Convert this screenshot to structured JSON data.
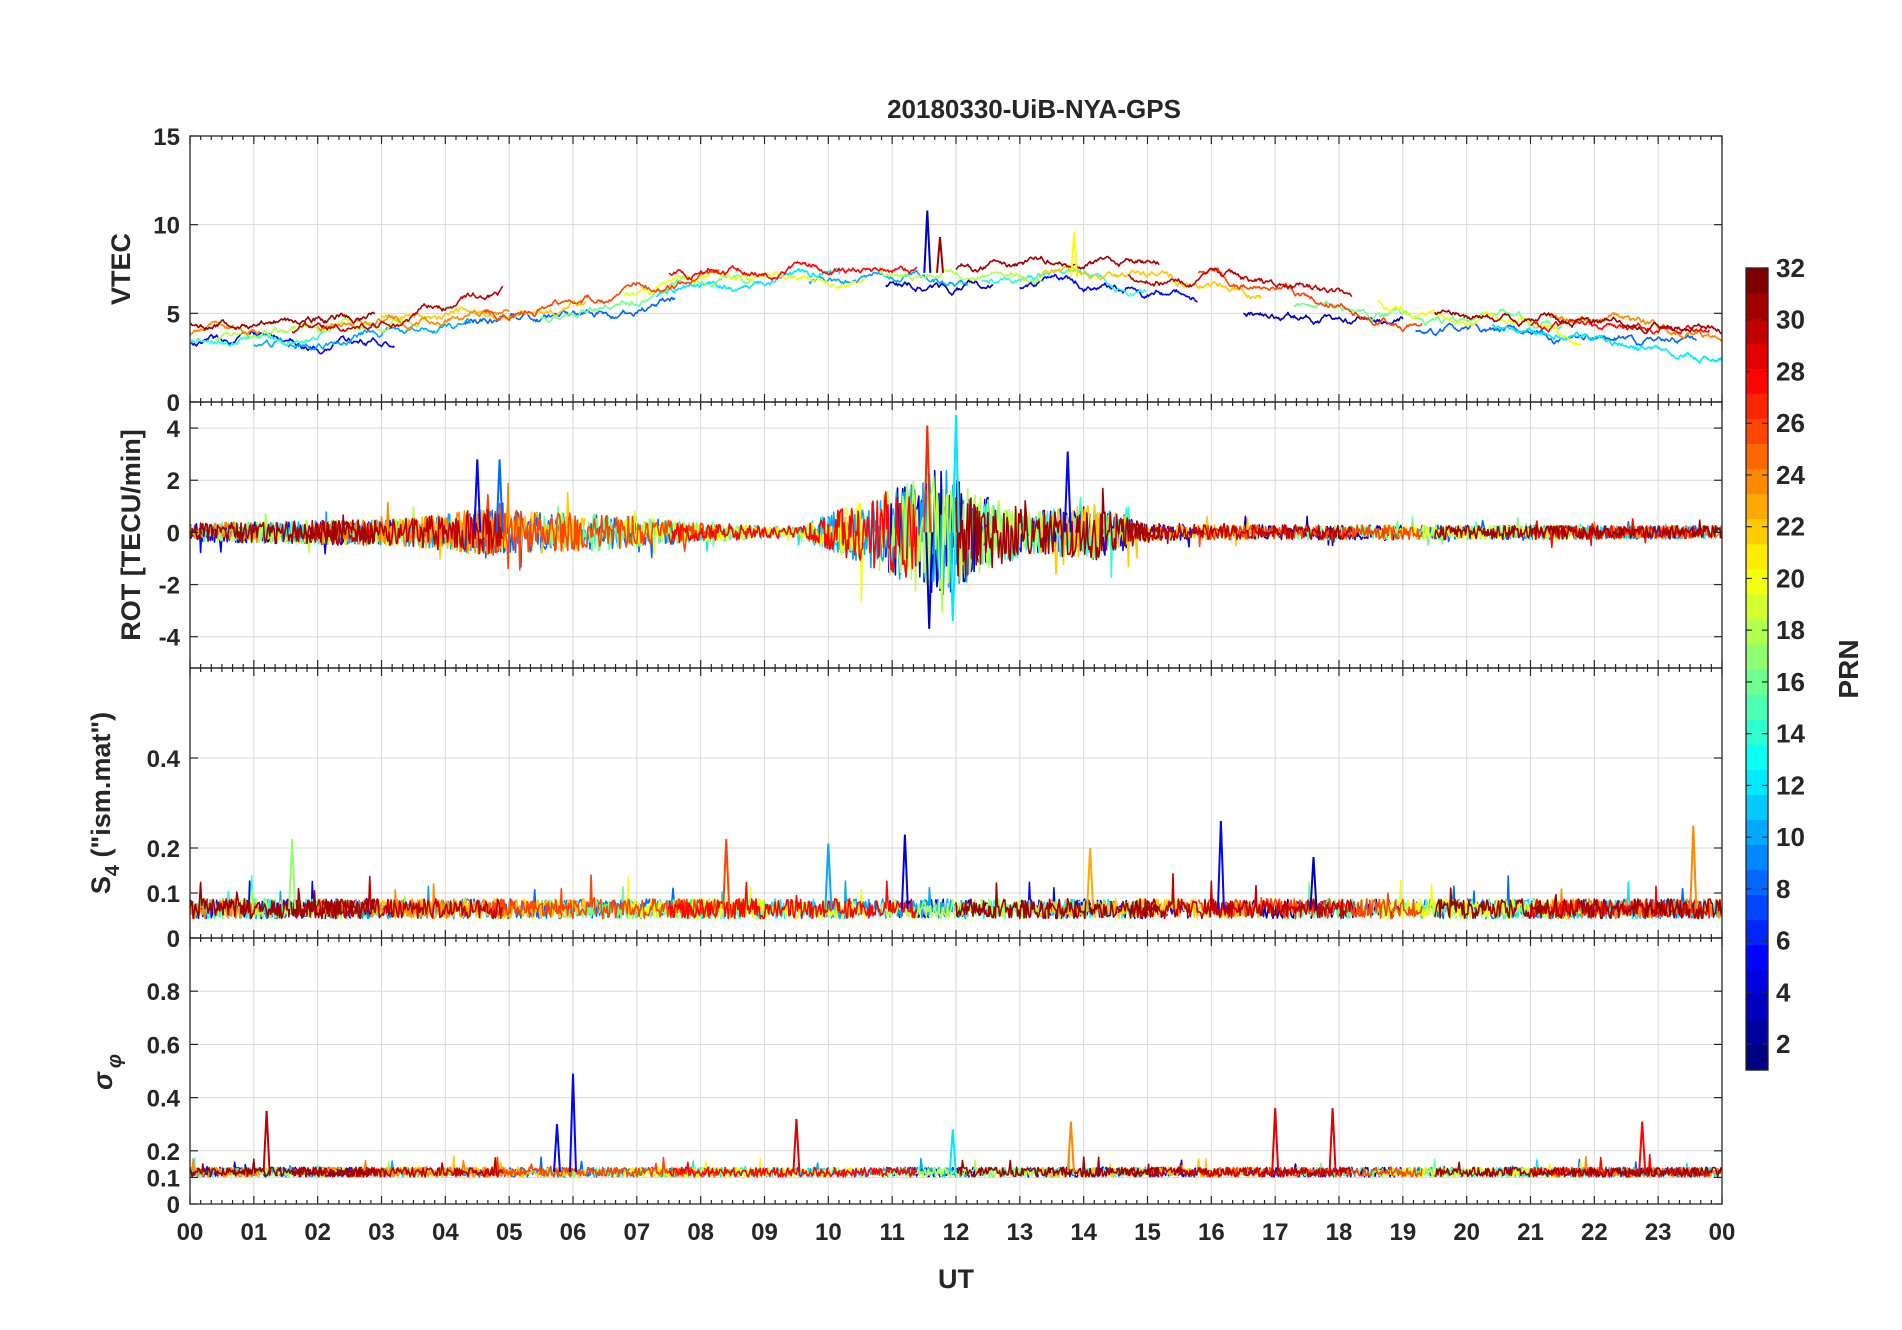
{
  "chart_data": {
    "type": "line",
    "title": "20180330-UiB-NYA-GPS",
    "xlabel": "UT",
    "x_tick_labels": [
      "00",
      "01",
      "02",
      "03",
      "04",
      "05",
      "06",
      "07",
      "08",
      "09",
      "10",
      "11",
      "12",
      "13",
      "14",
      "15",
      "16",
      "17",
      "18",
      "19",
      "20",
      "21",
      "22",
      "23",
      "00"
    ],
    "xlim": [
      0,
      24
    ],
    "panels": [
      {
        "id": "vtec",
        "ylabel": "VTEC",
        "ylim": [
          0,
          15
        ],
        "yticks": [
          0,
          5,
          10,
          15
        ],
        "ytick_labels": [
          "0",
          "5",
          "10",
          "15"
        ],
        "baseline": [
          [
            0,
            3.6
          ],
          [
            2,
            4.0
          ],
          [
            4,
            4.6
          ],
          [
            6,
            5.4
          ],
          [
            8,
            6.8
          ],
          [
            10,
            7.2
          ],
          [
            12,
            7.3
          ],
          [
            14,
            7.0
          ],
          [
            16,
            6.4
          ],
          [
            18,
            5.3
          ],
          [
            20,
            4.4
          ],
          [
            22,
            3.9
          ],
          [
            24,
            3.4
          ]
        ],
        "spread": 1.6,
        "noise": 0.25,
        "spikes": [
          {
            "t": 11.55,
            "v": 10.8,
            "prn": 3
          },
          {
            "t": 11.75,
            "v": 9.3,
            "prn": 31
          },
          {
            "t": 13.85,
            "v": 9.6,
            "prn": 20
          }
        ]
      },
      {
        "id": "rot",
        "ylabel": "ROT [TECU/min]",
        "ylim": [
          -5.2,
          5
        ],
        "yticks": [
          -4,
          -2,
          0,
          2,
          4
        ],
        "ytick_labels": [
          "-4",
          "-2",
          "0",
          "2",
          "4"
        ],
        "activity": [
          [
            0,
            0.35
          ],
          [
            3.5,
            0.55
          ],
          [
            4.5,
            0.9
          ],
          [
            6.5,
            0.7
          ],
          [
            8,
            0.35
          ],
          [
            9.5,
            0.2
          ],
          [
            10.7,
            1.4
          ],
          [
            11.8,
            2.5
          ],
          [
            12.5,
            1.4
          ],
          [
            13.2,
            0.8
          ],
          [
            14.2,
            1.1
          ],
          [
            15,
            0.3
          ],
          [
            24,
            0.25
          ]
        ],
        "spikes": [
          {
            "t": 11.55,
            "v": 4.1,
            "prn": 27
          },
          {
            "t": 11.58,
            "v": -3.7,
            "prn": 3
          },
          {
            "t": 12.0,
            "v": 4.5,
            "prn": 12
          },
          {
            "t": 11.95,
            "v": -3.4,
            "prn": 12
          },
          {
            "t": 13.75,
            "v": 3.1,
            "prn": 5
          },
          {
            "t": 4.5,
            "v": 2.8,
            "prn": 5
          },
          {
            "t": 4.85,
            "v": 2.8,
            "prn": 8
          }
        ]
      },
      {
        "id": "s4",
        "ylabel": "S4 (\"ism.mat\")",
        "ylabel_main": "S",
        "ylabel_sub": "4",
        "ylabel_rest": " (\"ism.mat\")",
        "ylim": [
          0,
          0.6
        ],
        "yticks": [
          0,
          0.1,
          0.2,
          0.4
        ],
        "ytick_labels": [
          "0",
          "0.1",
          "0.2",
          "0.4"
        ],
        "base_value": 0.065,
        "noise": 0.022,
        "spikes": [
          {
            "t": 1.6,
            "v": 0.22,
            "prn": 17
          },
          {
            "t": 8.4,
            "v": 0.22,
            "prn": 26
          },
          {
            "t": 10.0,
            "v": 0.21,
            "prn": 10
          },
          {
            "t": 11.2,
            "v": 0.23,
            "prn": 4
          },
          {
            "t": 14.1,
            "v": 0.2,
            "prn": 23
          },
          {
            "t": 16.15,
            "v": 0.26,
            "prn": 5
          },
          {
            "t": 17.6,
            "v": 0.18,
            "prn": 3
          },
          {
            "t": 23.55,
            "v": 0.25,
            "prn": 24
          }
        ]
      },
      {
        "id": "sigma_phi",
        "ylabel": "σφ",
        "ylabel_main": "σ",
        "ylabel_sub": "φ",
        "ylim": [
          0,
          1
        ],
        "yticks": [
          0,
          0.1,
          0.2,
          0.4,
          0.6,
          0.8
        ],
        "ytick_labels": [
          "0",
          "0.1",
          "0.2",
          "0.4",
          "0.6",
          "0.8"
        ],
        "base_value": 0.12,
        "noise": 0.018,
        "spikes": [
          {
            "t": 1.2,
            "v": 0.35,
            "prn": 30
          },
          {
            "t": 5.75,
            "v": 0.3,
            "prn": 5
          },
          {
            "t": 6.0,
            "v": 0.49,
            "prn": 5
          },
          {
            "t": 9.5,
            "v": 0.32,
            "prn": 29
          },
          {
            "t": 11.95,
            "v": 0.28,
            "prn": 12
          },
          {
            "t": 13.8,
            "v": 0.31,
            "prn": 24
          },
          {
            "t": 17.0,
            "v": 0.36,
            "prn": 29
          },
          {
            "t": 17.9,
            "v": 0.36,
            "prn": 29
          },
          {
            "t": 22.75,
            "v": 0.31,
            "prn": 28
          }
        ]
      }
    ],
    "colorbar": {
      "label": "PRN",
      "min": 1,
      "max": 32,
      "ticks": [
        2,
        4,
        6,
        8,
        10,
        12,
        14,
        16,
        18,
        20,
        22,
        24,
        26,
        28,
        30,
        32
      ],
      "tick_labels": [
        "2",
        "4",
        "6",
        "8",
        "10",
        "12",
        "14",
        "16",
        "18",
        "20",
        "22",
        "24",
        "26",
        "28",
        "30",
        "32"
      ],
      "colormap": "jet"
    },
    "satellites": [
      {
        "prn": 3,
        "segments": [
          [
            10.9,
            12.6
          ],
          [
            16.5,
            19.0
          ]
        ]
      },
      {
        "prn": 5,
        "segments": [
          [
            0.0,
            3.2
          ],
          [
            13.0,
            15.8
          ]
        ]
      },
      {
        "prn": 8,
        "segments": [
          [
            4.3,
            7.6
          ],
          [
            19.2,
            23.6
          ]
        ]
      },
      {
        "prn": 10,
        "segments": [
          [
            1.0,
            4.4
          ],
          [
            9.7,
            12.2
          ]
        ]
      },
      {
        "prn": 12,
        "segments": [
          [
            7.3,
            10.2
          ],
          [
            20.4,
            24.0
          ]
        ]
      },
      {
        "prn": 14,
        "segments": [
          [
            0.0,
            2.1
          ],
          [
            12.4,
            15.0
          ]
        ]
      },
      {
        "prn": 16,
        "segments": [
          [
            5.5,
            8.8
          ],
          [
            17.3,
            21.5
          ]
        ]
      },
      {
        "prn": 18,
        "segments": [
          [
            0.4,
            3.6
          ],
          [
            10.8,
            13.4
          ]
        ]
      },
      {
        "prn": 20,
        "segments": [
          [
            6.8,
            10.6
          ],
          [
            18.6,
            21.8
          ]
        ]
      },
      {
        "prn": 22,
        "segments": [
          [
            3.0,
            6.2
          ],
          [
            13.3,
            16.8
          ]
        ]
      },
      {
        "prn": 24,
        "segments": [
          [
            0.0,
            1.1
          ],
          [
            2.0,
            5.0
          ],
          [
            21.3,
            24.0
          ]
        ]
      },
      {
        "prn": 26,
        "segments": [
          [
            4.6,
            8.3
          ],
          [
            15.8,
            19.3
          ]
        ]
      },
      {
        "prn": 28,
        "segments": [
          [
            7.5,
            11.4
          ],
          [
            21.0,
            23.8
          ]
        ]
      },
      {
        "prn": 30,
        "segments": [
          [
            1.6,
            4.9
          ],
          [
            14.7,
            18.2
          ]
        ]
      },
      {
        "prn": 31,
        "segments": [
          [
            0.0,
            2.9
          ],
          [
            12.0,
            15.2
          ],
          [
            19.5,
            24.0
          ]
        ]
      }
    ]
  }
}
